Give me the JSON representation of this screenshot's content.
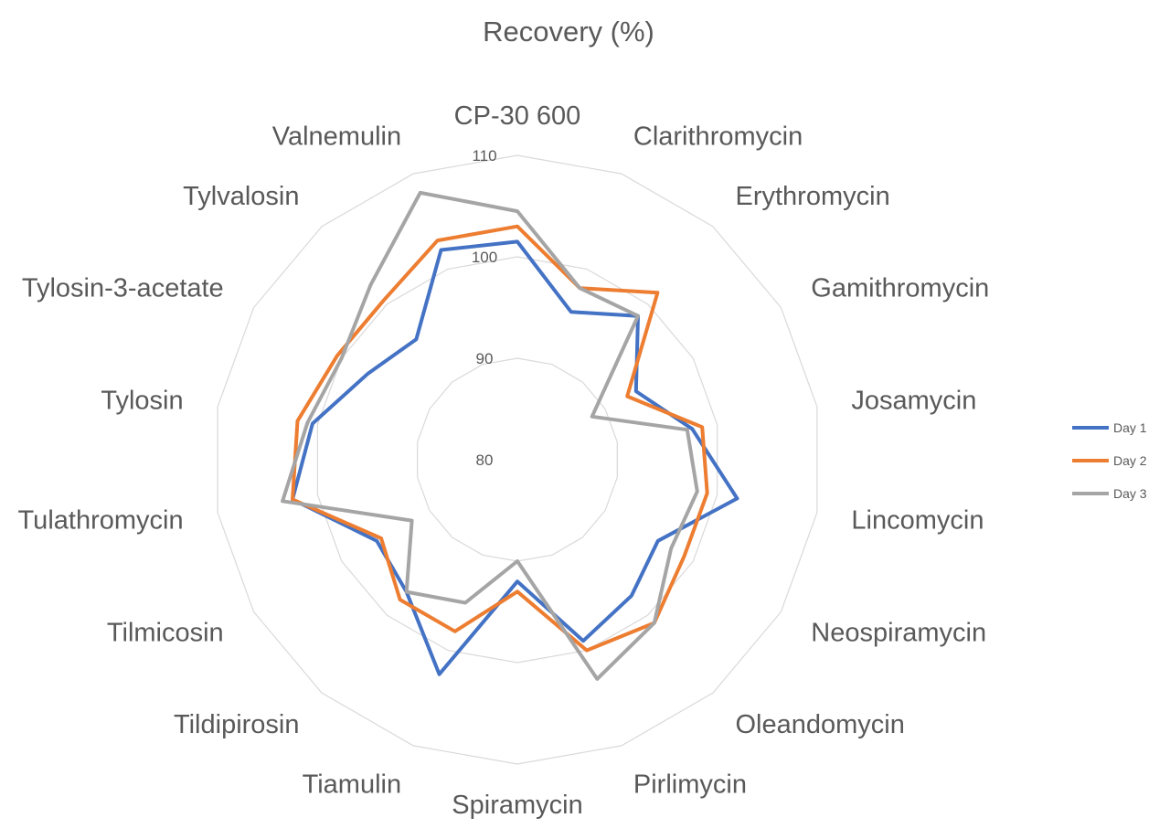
{
  "chart_data": {
    "type": "radar",
    "title": "Recovery (%)",
    "categories": [
      "CP-30 600",
      "Clarithromycin",
      "Erythromycin",
      "Gamithromycin",
      "Josamycin",
      "Lincomycin",
      "Neospiramycin",
      "Oleandomycin",
      "Pirlimycin",
      "Spiramycin",
      "Tiamulin",
      "Tildipirosin",
      "Tilmicosin",
      "Tulathromycin",
      "Tylosin",
      "Tylosin-3-acetate",
      "Tylvalosin",
      "Valnemulin"
    ],
    "r_axis": {
      "min": 80,
      "max": 110,
      "ticks": [
        80,
        90,
        100,
        110
      ]
    },
    "grid": true,
    "legend_position": "right",
    "series": [
      {
        "name": "Day 1",
        "color": "#4472c4",
        "values": [
          101.5,
          95.5,
          98.5,
          93.5,
          97.5,
          102,
          96,
          97.5,
          99,
          92,
          102.5,
          97,
          96,
          102.5,
          100.5,
          97,
          95.5,
          102
        ]
      },
      {
        "name": "Day 2",
        "color": "#ed7d31",
        "values": [
          103,
          98,
          101.5,
          92.5,
          98.5,
          99,
          99,
          101,
          100,
          93,
          98,
          98,
          95.5,
          102.5,
          102,
          100.5,
          100.5,
          103
        ]
      },
      {
        "name": "Day 3",
        "color": "#a5a5a5",
        "values": [
          104.5,
          98,
          98.5,
          88.5,
          97,
          98,
          97.5,
          101,
          103,
          90,
          95,
          97,
          92,
          103.5,
          101,
          100,
          102.5,
          108
        ]
      }
    ]
  }
}
